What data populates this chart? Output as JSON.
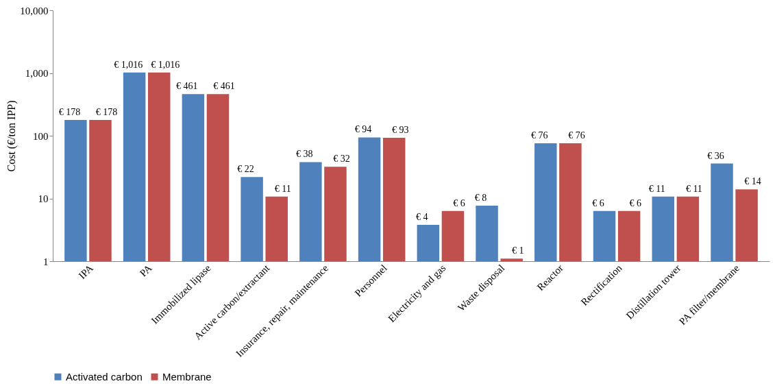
{
  "chart_data": {
    "type": "bar",
    "ylabel": "Cost (€/ton IPP)",
    "categories": [
      "IPA",
      "PA",
      "Immobilized lipase",
      "Active carbon/extractant",
      "Insurance, repair, maintenance",
      "Personnel",
      "Electricity and gas",
      "Waste disposal",
      "Reactor",
      "Rectification",
      "Distillation tower",
      "PA filter/membrane"
    ],
    "series": [
      {
        "name": "Activated carbon",
        "color": "#4f81bd",
        "values": [
          178,
          1016,
          461,
          22,
          38,
          94,
          3.8,
          7.7,
          76,
          6.3,
          10.7,
          36
        ],
        "value_labels": [
          "€ 178",
          "€ 1,016",
          "€ 461",
          "€ 22",
          "€ 38",
          "€ 94",
          "€ 4",
          "€ 8",
          "€ 76",
          "€ 6",
          "€ 11",
          "€ 36"
        ]
      },
      {
        "name": "Membrane",
        "color": "#c0504d",
        "values": [
          178,
          1016,
          461,
          10.7,
          32,
          93,
          6.3,
          1.1,
          76,
          6.3,
          10.7,
          14
        ],
        "value_labels": [
          "€ 178",
          "€ 1,016",
          "€ 461",
          "€ 11",
          "€ 32",
          "€ 93",
          "€ 6",
          "€ 1",
          "€ 76",
          "€ 6",
          "€ 11",
          "€ 14"
        ]
      }
    ],
    "ylim": [
      1,
      10000
    ],
    "yticks": [
      1,
      10,
      100,
      {
        "value": 1000,
        "label": "1,000"
      },
      {
        "value": 10000,
        "label": "10,000"
      }
    ],
    "log": true,
    "grid": false,
    "legend": "bottom"
  }
}
